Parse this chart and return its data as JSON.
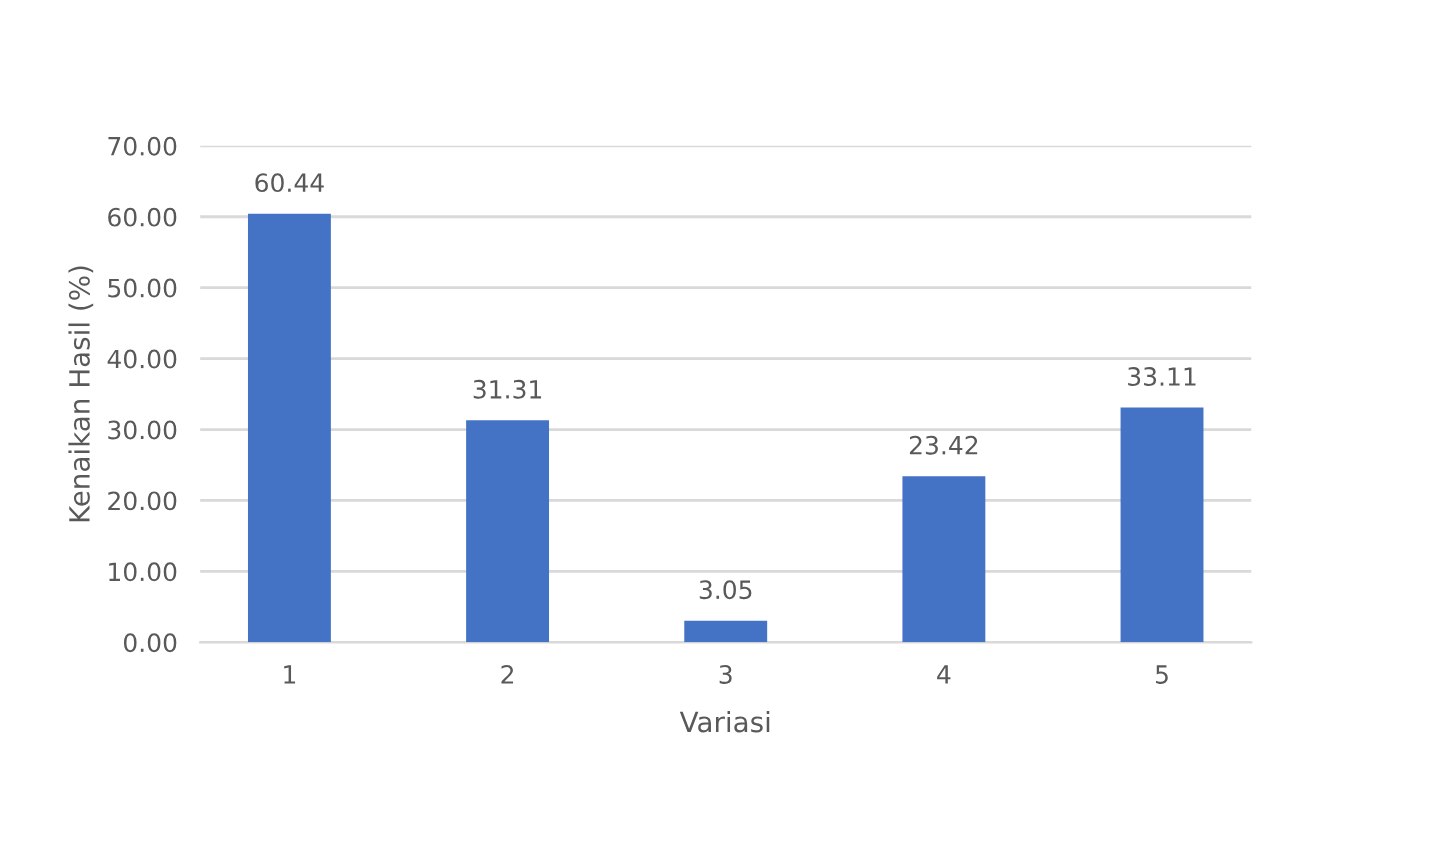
{
  "chart_data": {
    "type": "bar",
    "xlabel": "Variasi",
    "ylabel": "Kenaikan Hasil (%)",
    "categories": [
      "1",
      "2",
      "3",
      "4",
      "5"
    ],
    "values": [
      60.44,
      31.31,
      3.05,
      23.42,
      33.11
    ],
    "color": "#4472c4",
    "ylim": [
      0,
      70
    ],
    "yticks": [
      {
        "value": 0,
        "label": "0.00"
      },
      {
        "value": 10,
        "label": "10.00"
      },
      {
        "value": 20,
        "label": "20.00"
      },
      {
        "value": 30,
        "label": "30.00"
      },
      {
        "value": 40,
        "label": "40.00"
      },
      {
        "value": 50,
        "label": "50.00"
      },
      {
        "value": 60,
        "label": "60.00"
      },
      {
        "value": 70,
        "label": "70.00"
      }
    ],
    "grid": "y",
    "data_labels": true
  }
}
